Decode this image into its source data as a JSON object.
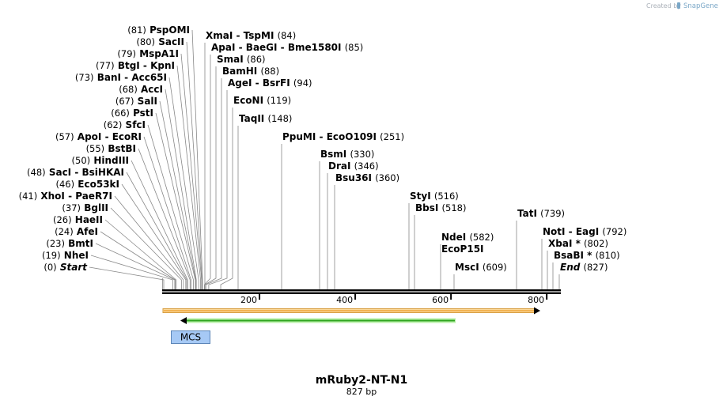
{
  "credit": {
    "created_by": "Created by",
    "brand": "SnapGene"
  },
  "title": "mRuby2-NT-N1",
  "subtitle": "827 bp",
  "axis": {
    "start": 0,
    "end": 827,
    "ticks": [
      "200",
      "400",
      "600",
      "800"
    ]
  },
  "colors": {
    "line": "#888888",
    "orange_feature": "#f0a63a",
    "orange_outline": "#d79b3b",
    "green_feature": "#2fa51f",
    "green_glow": "#b8f0a8",
    "mcs_fill": "#a6c9f5",
    "mcs_border": "#5d86b8"
  },
  "left_sites": [
    {
      "pos": "(81)",
      "names": [
        "PspOMI"
      ]
    },
    {
      "pos": "(80)",
      "names": [
        "SacII"
      ]
    },
    {
      "pos": "(79)",
      "names": [
        "MspA1I"
      ]
    },
    {
      "pos": "(77)",
      "names": [
        "BtgI",
        "KpnI"
      ]
    },
    {
      "pos": "(73)",
      "names": [
        "BanI",
        "Acc65I"
      ]
    },
    {
      "pos": "(68)",
      "names": [
        "AccI"
      ]
    },
    {
      "pos": "(67)",
      "names": [
        "SalI"
      ]
    },
    {
      "pos": "(66)",
      "names": [
        "PstI"
      ]
    },
    {
      "pos": "(62)",
      "names": [
        "SfcI"
      ]
    },
    {
      "pos": "(57)",
      "names": [
        "ApoI",
        "EcoRI"
      ]
    },
    {
      "pos": "(55)",
      "names": [
        "BstBI"
      ]
    },
    {
      "pos": "(50)",
      "names": [
        "HindIII"
      ]
    },
    {
      "pos": "(48)",
      "names": [
        "SacI",
        "BsiHKAI"
      ]
    },
    {
      "pos": "(46)",
      "names": [
        "Eco53kI"
      ]
    },
    {
      "pos": "(41)",
      "names": [
        "XhoI",
        "PaeR7I"
      ]
    },
    {
      "pos": "(37)",
      "names": [
        "BglII"
      ]
    },
    {
      "pos": "(26)",
      "names": [
        "HaeII"
      ]
    },
    {
      "pos": "(24)",
      "names": [
        "AfeI"
      ]
    },
    {
      "pos": "(23)",
      "names": [
        "BmtI"
      ]
    },
    {
      "pos": "(19)",
      "names": [
        "NheI"
      ]
    },
    {
      "pos": "(0)",
      "names": [
        "Start"
      ]
    }
  ],
  "right_sites": [
    {
      "names": [
        "XmaI",
        "TspMI"
      ],
      "pos": "(84)"
    },
    {
      "names": [
        "ApaI",
        "BaeGI",
        "Bme1580I"
      ],
      "pos": "(85)"
    },
    {
      "names": [
        "SmaI"
      ],
      "pos": "(86)"
    },
    {
      "names": [
        "BamHI"
      ],
      "pos": "(88)"
    },
    {
      "names": [
        "AgeI",
        "BsrFI"
      ],
      "pos": "(94)"
    },
    {
      "names": [
        "EcoNI"
      ],
      "pos": "(119)"
    },
    {
      "names": [
        "TaqII"
      ],
      "pos": "(148)"
    },
    {
      "names": [
        "PpuMI",
        "EcoO109I"
      ],
      "pos": "(251)"
    },
    {
      "names": [
        "BsmI"
      ],
      "pos": "(330)"
    },
    {
      "names": [
        "DraI"
      ],
      "pos": "(346)"
    },
    {
      "names": [
        "Bsu36I"
      ],
      "pos": "(360)"
    },
    {
      "names": [
        "StyI"
      ],
      "pos": "(516)"
    },
    {
      "names": [
        "BbsI"
      ],
      "pos": "(518)"
    },
    {
      "names": [
        "NdeI"
      ],
      "pos": "(582)"
    },
    {
      "names": [
        "EcoP15I"
      ],
      "pos": ""
    },
    {
      "names": [
        "MscI"
      ],
      "pos": "(609)"
    },
    {
      "names": [
        "TatI"
      ],
      "pos": "(739)"
    },
    {
      "names": [
        "NotI",
        "EagI"
      ],
      "pos": "(792)"
    },
    {
      "names": [
        "XbaI *"
      ],
      "pos": "(802)"
    },
    {
      "names": [
        "BsaBI *"
      ],
      "pos": "(810)"
    },
    {
      "names": [
        "End"
      ],
      "pos": "(827)"
    }
  ],
  "features": {
    "mcs_label": "MCS"
  }
}
